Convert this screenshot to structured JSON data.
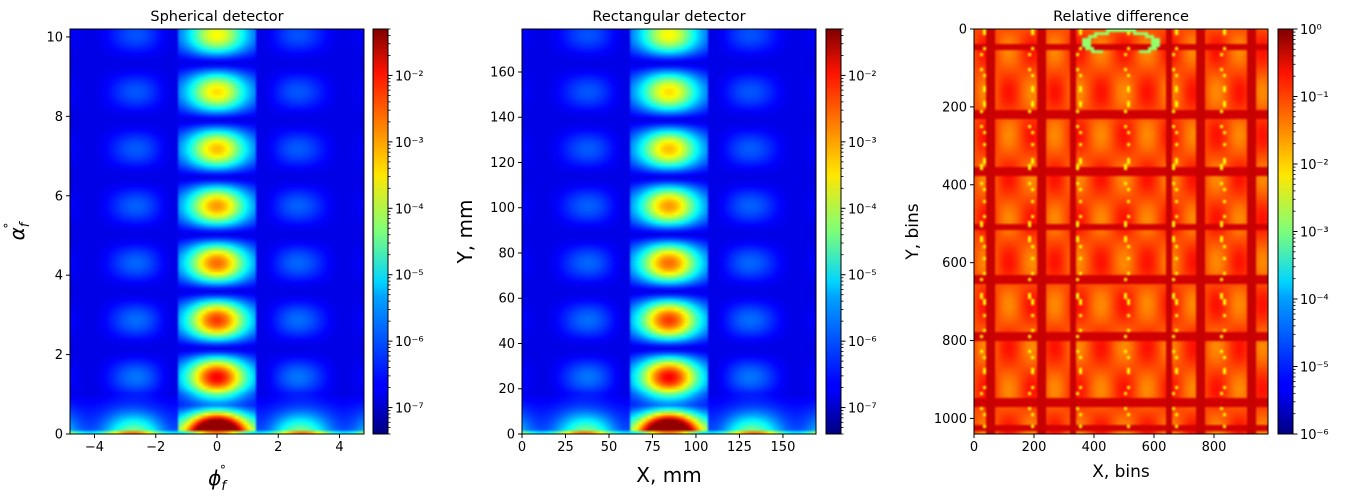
{
  "chart_data": [
    {
      "type": "heatmap",
      "title": "Spherical detector",
      "xlabel": "ϕ°_f",
      "ylabel": "α°_f",
      "xlim": [
        -4.8,
        4.8
      ],
      "ylim": [
        0,
        10.2
      ],
      "x_ticks": [
        -4,
        -2,
        0,
        2,
        4
      ],
      "x_tick_labels": [
        "−4",
        "−2",
        "0",
        "2",
        "4"
      ],
      "y_ticks": [
        0,
        2,
        4,
        6,
        8,
        10
      ],
      "y_tick_labels": [
        "0",
        "2",
        "4",
        "6",
        "8",
        "10"
      ],
      "colormap": "jet",
      "colorbar": {
        "scale": "log",
        "range": [
          4e-08,
          0.05
        ],
        "tick_values": [
          1e-07,
          1e-06,
          1e-05,
          0.0001,
          0.001,
          0.01
        ],
        "tick_labels": [
          "10⁻⁷",
          "10⁻⁶",
          "10⁻⁵",
          "10⁻⁴",
          "10⁻³",
          "10⁻²"
        ]
      }
    },
    {
      "type": "heatmap",
      "title": "Rectangular detector",
      "xlabel": "X, mm",
      "ylabel": "Y, mm",
      "xlim": [
        0,
        169
      ],
      "ylim": [
        0,
        179
      ],
      "x_ticks": [
        0,
        25,
        50,
        75,
        100,
        125,
        150
      ],
      "x_tick_labels": [
        "0",
        "25",
        "50",
        "75",
        "100",
        "125",
        "150"
      ],
      "y_ticks": [
        0,
        20,
        40,
        60,
        80,
        100,
        120,
        140,
        160
      ],
      "y_tick_labels": [
        "0",
        "20",
        "40",
        "60",
        "80",
        "100",
        "120",
        "140",
        "160"
      ],
      "colormap": "jet",
      "colorbar": {
        "scale": "log",
        "range": [
          4e-08,
          0.05
        ],
        "tick_values": [
          1e-07,
          1e-06,
          1e-05,
          0.0001,
          0.001,
          0.01
        ],
        "tick_labels": [
          "10⁻⁷",
          "10⁻⁶",
          "10⁻⁵",
          "10⁻⁴",
          "10⁻³",
          "10⁻²"
        ]
      }
    },
    {
      "type": "heatmap",
      "title": "Relative difference",
      "xlabel": "X, bins",
      "ylabel": "Y, bins",
      "xlim": [
        0,
        980
      ],
      "ylim": [
        1040,
        0
      ],
      "x_ticks": [
        0,
        200,
        400,
        600,
        800
      ],
      "x_tick_labels": [
        "0",
        "200",
        "400",
        "600",
        "800"
      ],
      "y_ticks": [
        0,
        200,
        400,
        600,
        800,
        1000
      ],
      "y_tick_labels": [
        "0",
        "200",
        "400",
        "600",
        "800",
        "1000"
      ],
      "colormap": "jet",
      "colorbar": {
        "scale": "log",
        "range": [
          1e-06,
          1
        ],
        "tick_values": [
          1e-06,
          1e-05,
          0.0001,
          0.001,
          0.01,
          0.1,
          1
        ],
        "tick_labels": [
          "10⁻⁶",
          "10⁻⁵",
          "10⁻⁴",
          "10⁻³",
          "10⁻²",
          "10⁻¹",
          "10⁰"
        ]
      }
    }
  ]
}
